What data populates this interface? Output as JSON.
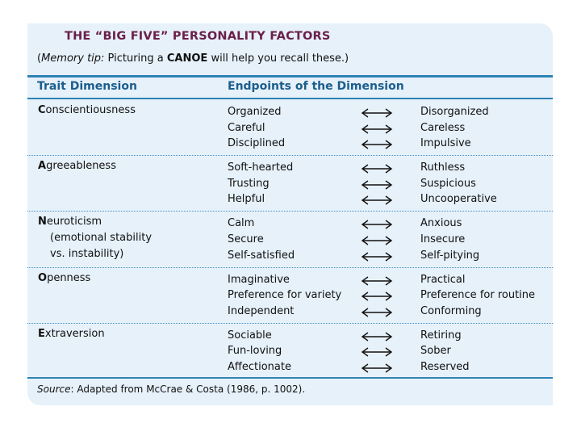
{
  "title": "THE “BIG FIVE” PERSONALITY FACTORS",
  "tip": {
    "open": "(",
    "label": "Memory tip:",
    "pre": " Picturing a ",
    "keyword": "CANOE",
    "post": " will help you recall these.)"
  },
  "headers": {
    "trait": "Trait Dimension",
    "endpoints": "Endpoints of the Dimension"
  },
  "groups": [
    {
      "initial": "C",
      "rest": "onscientiousness",
      "sub": [],
      "rows": [
        {
          "left": "Organized",
          "right": "Disorganized"
        },
        {
          "left": "Careful",
          "right": "Careless"
        },
        {
          "left": "Disciplined",
          "right": "Impulsive"
        }
      ]
    },
    {
      "initial": "A",
      "rest": "greeableness",
      "sub": [],
      "rows": [
        {
          "left": "Soft-hearted",
          "right": "Ruthless"
        },
        {
          "left": "Trusting",
          "right": "Suspicious"
        },
        {
          "left": "Helpful",
          "right": "Uncooperative"
        }
      ]
    },
    {
      "initial": "N",
      "rest": "euroticism",
      "sub": [
        "(emotional stability",
        "vs. instability)"
      ],
      "rows": [
        {
          "left": "Calm",
          "right": "Anxious"
        },
        {
          "left": "Secure",
          "right": "Insecure"
        },
        {
          "left": "Self-satisfied",
          "right": "Self-pitying"
        }
      ]
    },
    {
      "initial": "O",
      "rest": "penness",
      "sub": [],
      "rows": [
        {
          "left": "Imaginative",
          "right": "Practical"
        },
        {
          "left": "Preference for variety",
          "right": "Preference for routine"
        },
        {
          "left": "Independent",
          "right": "Conforming"
        }
      ]
    },
    {
      "initial": "E",
      "rest": "xtraversion",
      "sub": [],
      "rows": [
        {
          "left": "Sociable",
          "right": "Retiring"
        },
        {
          "left": "Fun-loving",
          "right": "Sober"
        },
        {
          "left": "Affectionate",
          "right": "Reserved"
        }
      ]
    }
  ],
  "source": {
    "label": "Source",
    "text": ": Adapted from McCrae & Costa (1986, p. 1002)."
  },
  "colors": {
    "card_bg": "#e6f1fa",
    "title": "#6b1f4a",
    "header": "#1b5e8c",
    "rule": "#2e83b4"
  }
}
